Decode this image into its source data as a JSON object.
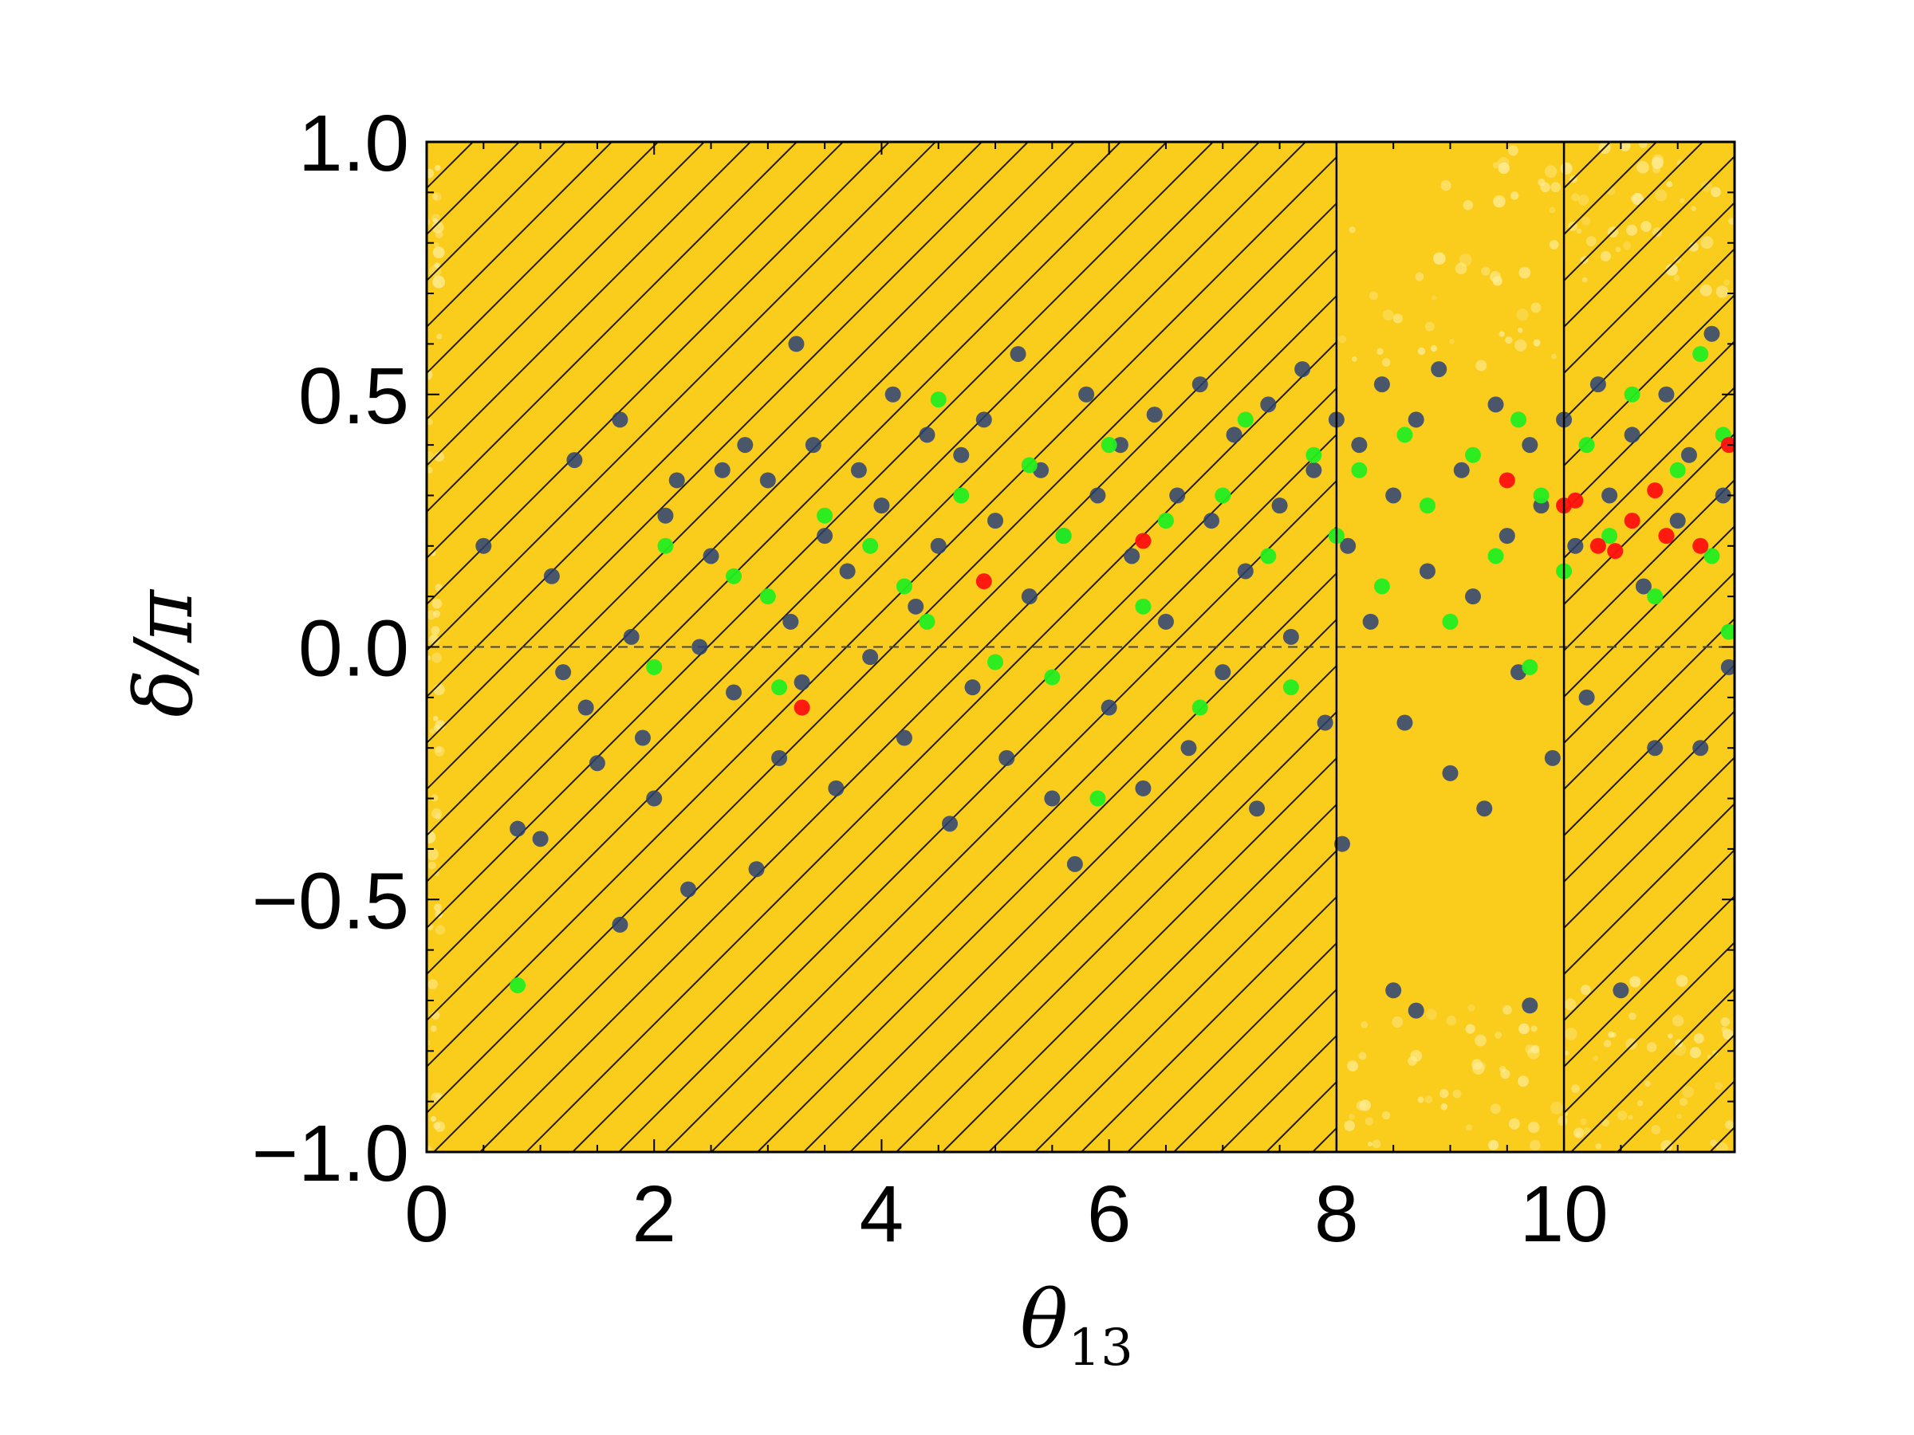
{
  "colors": {
    "background_band": "#FACC1B",
    "band_speckle": "#FFF3B0",
    "hatch": "#1a1a1a",
    "series_dark": "#2a4278",
    "series_green": "#22ee22",
    "series_red": "#ff1010"
  },
  "chart_data": {
    "type": "scatter",
    "title": "",
    "xlabel": "θ13",
    "xlabel_main": "θ",
    "xlabel_sub": "13",
    "ylabel": "δ/π",
    "xlim": [
      0,
      11.5
    ],
    "ylim": [
      -1.0,
      1.0
    ],
    "x_ticks": [
      0,
      2,
      4,
      6,
      8,
      10
    ],
    "x_tick_labels": [
      "0",
      "2",
      "4",
      "6",
      "8",
      "10"
    ],
    "y_ticks": [
      -1.0,
      -0.5,
      0.0,
      0.5,
      1.0
    ],
    "y_tick_labels": [
      "−1.0",
      "−0.5",
      "0.0",
      "0.5",
      "1.0"
    ],
    "grid": false,
    "reference_line": {
      "y": 0.0,
      "style": "dashed"
    },
    "hatched_regions": [
      {
        "x_from": 0,
        "x_to": 8.0,
        "hatch": "diagonal"
      },
      {
        "x_from": 10.0,
        "x_to": 11.5,
        "hatch": "diagonal"
      }
    ],
    "unhatched_region": {
      "x_from": 8.0,
      "x_to": 10.0
    },
    "series": [
      {
        "color_key": "series_dark",
        "points": [
          [
            0.5,
            0.2
          ],
          [
            0.8,
            -0.36
          ],
          [
            1.0,
            -0.38
          ],
          [
            1.1,
            0.14
          ],
          [
            1.2,
            -0.05
          ],
          [
            1.3,
            0.37
          ],
          [
            1.4,
            -0.12
          ],
          [
            1.5,
            -0.23
          ],
          [
            1.7,
            0.45
          ],
          [
            1.7,
            -0.55
          ],
          [
            1.8,
            0.02
          ],
          [
            1.9,
            -0.18
          ],
          [
            2.0,
            -0.3
          ],
          [
            2.1,
            0.26
          ],
          [
            2.2,
            0.33
          ],
          [
            2.3,
            -0.48
          ],
          [
            2.4,
            0.0
          ],
          [
            2.5,
            0.18
          ],
          [
            2.6,
            0.35
          ],
          [
            2.7,
            -0.09
          ],
          [
            2.8,
            0.4
          ],
          [
            2.9,
            -0.44
          ],
          [
            3.0,
            0.33
          ],
          [
            3.1,
            -0.22
          ],
          [
            3.2,
            0.05
          ],
          [
            3.25,
            0.6
          ],
          [
            3.3,
            -0.07
          ],
          [
            3.4,
            0.4
          ],
          [
            3.5,
            0.22
          ],
          [
            3.6,
            -0.28
          ],
          [
            3.7,
            0.15
          ],
          [
            3.8,
            0.35
          ],
          [
            3.9,
            -0.02
          ],
          [
            4.0,
            0.28
          ],
          [
            4.1,
            0.5
          ],
          [
            4.2,
            -0.18
          ],
          [
            4.3,
            0.08
          ],
          [
            4.4,
            0.42
          ],
          [
            4.5,
            0.2
          ],
          [
            4.6,
            -0.35
          ],
          [
            4.7,
            0.38
          ],
          [
            4.8,
            -0.08
          ],
          [
            4.9,
            0.45
          ],
          [
            5.0,
            0.25
          ],
          [
            5.1,
            -0.22
          ],
          [
            5.2,
            0.58
          ],
          [
            5.3,
            0.1
          ],
          [
            5.4,
            0.35
          ],
          [
            5.5,
            -0.3
          ],
          [
            5.6,
            0.22
          ],
          [
            5.7,
            -0.43
          ],
          [
            5.8,
            0.5
          ],
          [
            5.9,
            0.3
          ],
          [
            6.0,
            -0.12
          ],
          [
            6.1,
            0.4
          ],
          [
            6.2,
            0.18
          ],
          [
            6.3,
            -0.28
          ],
          [
            6.4,
            0.46
          ],
          [
            6.5,
            0.05
          ],
          [
            6.6,
            0.3
          ],
          [
            6.7,
            -0.2
          ],
          [
            6.8,
            0.52
          ],
          [
            6.9,
            0.25
          ],
          [
            7.0,
            -0.05
          ],
          [
            7.1,
            0.42
          ],
          [
            7.2,
            0.15
          ],
          [
            7.3,
            -0.32
          ],
          [
            7.4,
            0.48
          ],
          [
            7.5,
            0.28
          ],
          [
            7.6,
            0.02
          ],
          [
            7.7,
            0.55
          ],
          [
            7.8,
            0.35
          ],
          [
            7.9,
            -0.15
          ],
          [
            8.0,
            0.45
          ],
          [
            8.05,
            -0.39
          ],
          [
            8.1,
            0.2
          ],
          [
            8.2,
            0.4
          ],
          [
            8.3,
            0.05
          ],
          [
            8.4,
            0.52
          ],
          [
            8.5,
            -0.68
          ],
          [
            8.5,
            0.3
          ],
          [
            8.6,
            -0.15
          ],
          [
            8.7,
            -0.72
          ],
          [
            8.7,
            0.45
          ],
          [
            8.8,
            0.15
          ],
          [
            8.9,
            0.55
          ],
          [
            9.0,
            -0.25
          ],
          [
            9.1,
            0.35
          ],
          [
            9.2,
            0.1
          ],
          [
            9.3,
            -0.32
          ],
          [
            9.4,
            0.48
          ],
          [
            9.5,
            0.22
          ],
          [
            9.6,
            -0.05
          ],
          [
            9.7,
            0.4
          ],
          [
            9.8,
            0.28
          ],
          [
            9.9,
            -0.22
          ],
          [
            9.7,
            -0.71
          ],
          [
            10.0,
            0.45
          ],
          [
            10.1,
            0.2
          ],
          [
            10.2,
            -0.1
          ],
          [
            10.3,
            0.52
          ],
          [
            10.4,
            0.3
          ],
          [
            10.5,
            -0.68
          ],
          [
            10.6,
            0.42
          ],
          [
            10.7,
            0.12
          ],
          [
            10.8,
            -0.2
          ],
          [
            10.9,
            0.5
          ],
          [
            11.0,
            0.25
          ],
          [
            11.1,
            0.38
          ],
          [
            11.2,
            -0.2
          ],
          [
            11.3,
            0.62
          ],
          [
            11.4,
            0.3
          ],
          [
            11.45,
            -0.04
          ]
        ]
      },
      {
        "color_key": "series_green",
        "points": [
          [
            0.8,
            -0.67
          ],
          [
            2.0,
            -0.04
          ],
          [
            2.1,
            0.2
          ],
          [
            2.7,
            0.14
          ],
          [
            3.0,
            0.1
          ],
          [
            3.1,
            -0.08
          ],
          [
            3.5,
            0.26
          ],
          [
            3.9,
            0.2
          ],
          [
            4.2,
            0.12
          ],
          [
            4.4,
            0.05
          ],
          [
            4.5,
            0.49
          ],
          [
            4.7,
            0.3
          ],
          [
            5.0,
            -0.03
          ],
          [
            5.3,
            0.36
          ],
          [
            5.5,
            -0.06
          ],
          [
            5.6,
            0.22
          ],
          [
            5.9,
            -0.3
          ],
          [
            6.0,
            0.4
          ],
          [
            6.3,
            0.08
          ],
          [
            6.5,
            0.25
          ],
          [
            6.8,
            -0.12
          ],
          [
            7.0,
            0.3
          ],
          [
            7.2,
            0.45
          ],
          [
            7.4,
            0.18
          ],
          [
            7.6,
            -0.08
          ],
          [
            7.8,
            0.38
          ],
          [
            8.0,
            0.22
          ],
          [
            8.2,
            0.35
          ],
          [
            8.4,
            0.12
          ],
          [
            8.6,
            0.42
          ],
          [
            8.8,
            0.28
          ],
          [
            9.0,
            0.05
          ],
          [
            9.2,
            0.38
          ],
          [
            9.4,
            0.18
          ],
          [
            9.6,
            0.45
          ],
          [
            9.7,
            -0.04
          ],
          [
            9.8,
            0.3
          ],
          [
            10.0,
            0.15
          ],
          [
            10.2,
            0.4
          ],
          [
            10.4,
            0.22
          ],
          [
            10.6,
            0.5
          ],
          [
            10.8,
            0.1
          ],
          [
            11.0,
            0.35
          ],
          [
            11.2,
            0.58
          ],
          [
            11.3,
            0.18
          ],
          [
            11.4,
            0.42
          ],
          [
            11.45,
            0.03
          ]
        ]
      },
      {
        "color_key": "series_red",
        "points": [
          [
            3.3,
            -0.12
          ],
          [
            4.9,
            0.13
          ],
          [
            6.3,
            0.21
          ],
          [
            9.5,
            0.33
          ],
          [
            10.0,
            0.28
          ],
          [
            10.1,
            0.29
          ],
          [
            10.3,
            0.2
          ],
          [
            10.45,
            0.19
          ],
          [
            10.6,
            0.25
          ],
          [
            10.8,
            0.31
          ],
          [
            10.9,
            0.22
          ],
          [
            11.2,
            0.2
          ],
          [
            11.45,
            0.4
          ]
        ]
      }
    ]
  }
}
